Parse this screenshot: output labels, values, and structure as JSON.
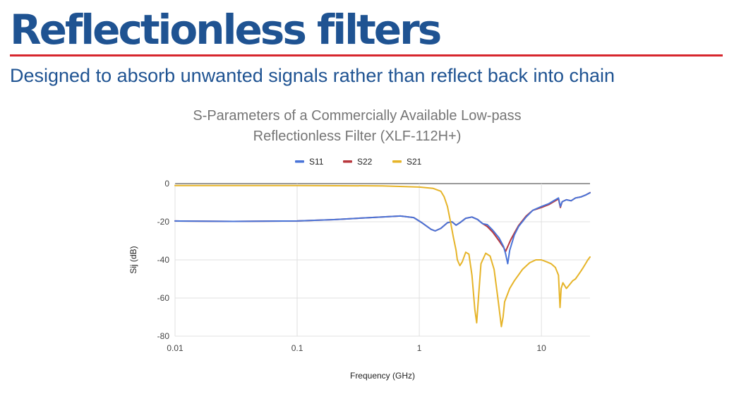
{
  "slide": {
    "title": "Reflectionless filters",
    "subtitle": "Designed to absorb unwanted signals rather than reflect back into chain"
  },
  "colors": {
    "brand_blue": "#1f5392",
    "accent_red": "#d7262d",
    "s11": "#4a74d8",
    "s22": "#b8373d",
    "s21": "#e6b429"
  },
  "chart_data": {
    "type": "line",
    "title_lines": [
      "S-Parameters of a Commercially Available Low-pass",
      "Reflectionless Filter (XLF-112H+)"
    ],
    "xlabel": "Frequency (GHz)",
    "ylabel": "Sij (dB)",
    "x_scale": "log",
    "xlim": [
      0.01,
      25
    ],
    "ylim": [
      -80,
      0
    ],
    "x_ticks": [
      {
        "value": 0.01,
        "label": "0.01"
      },
      {
        "value": 0.1,
        "label": "0.1"
      },
      {
        "value": 1,
        "label": "1"
      },
      {
        "value": 10,
        "label": "10"
      }
    ],
    "y_ticks": [
      {
        "value": 0,
        "label": "0"
      },
      {
        "value": -20,
        "label": "-20"
      },
      {
        "value": -40,
        "label": "-40"
      },
      {
        "value": -60,
        "label": "-60"
      },
      {
        "value": -80,
        "label": "-80"
      }
    ],
    "grid": true,
    "legend_position": "top",
    "series": [
      {
        "name": "S11",
        "color": "#4a74d8",
        "points": [
          [
            0.01,
            -19.6
          ],
          [
            0.03,
            -19.8
          ],
          [
            0.1,
            -19.6
          ],
          [
            0.2,
            -18.9
          ],
          [
            0.4,
            -17.8
          ],
          [
            0.7,
            -17.0
          ],
          [
            0.9,
            -17.8
          ],
          [
            1.05,
            -20.5
          ],
          [
            1.25,
            -24.0
          ],
          [
            1.35,
            -24.8
          ],
          [
            1.5,
            -23.5
          ],
          [
            1.7,
            -20.5
          ],
          [
            1.85,
            -20.0
          ],
          [
            2.0,
            -21.8
          ],
          [
            2.15,
            -20.5
          ],
          [
            2.4,
            -18.2
          ],
          [
            2.7,
            -17.5
          ],
          [
            3.0,
            -18.8
          ],
          [
            3.3,
            -21.0
          ],
          [
            3.6,
            -21.5
          ],
          [
            4.0,
            -24.5
          ],
          [
            4.5,
            -28.5
          ],
          [
            4.9,
            -33.0
          ],
          [
            5.1,
            -37.0
          ],
          [
            5.3,
            -42.0
          ],
          [
            5.5,
            -35.0
          ],
          [
            6.0,
            -27.0
          ],
          [
            6.5,
            -22.5
          ],
          [
            7.5,
            -17.5
          ],
          [
            8.5,
            -14.0
          ],
          [
            10.0,
            -12.0
          ],
          [
            11.5,
            -10.5
          ],
          [
            13.0,
            -8.5
          ],
          [
            13.8,
            -7.5
          ],
          [
            14.3,
            -12.0
          ],
          [
            14.8,
            -9.5
          ],
          [
            16.0,
            -8.5
          ],
          [
            17.5,
            -9.0
          ],
          [
            19.0,
            -7.5
          ],
          [
            21.0,
            -7.0
          ],
          [
            23.0,
            -6.0
          ],
          [
            25.0,
            -4.8
          ]
        ]
      },
      {
        "name": "S22",
        "color": "#b8373d",
        "points": [
          [
            0.01,
            -19.6
          ],
          [
            0.03,
            -19.8
          ],
          [
            0.1,
            -19.6
          ],
          [
            0.2,
            -18.9
          ],
          [
            0.4,
            -17.8
          ],
          [
            0.7,
            -17.0
          ],
          [
            0.9,
            -17.8
          ],
          [
            1.05,
            -20.5
          ],
          [
            1.25,
            -24.0
          ],
          [
            1.35,
            -24.8
          ],
          [
            1.5,
            -23.5
          ],
          [
            1.7,
            -20.5
          ],
          [
            1.85,
            -20.0
          ],
          [
            2.0,
            -21.8
          ],
          [
            2.15,
            -20.5
          ],
          [
            2.4,
            -18.2
          ],
          [
            2.7,
            -17.5
          ],
          [
            3.0,
            -18.8
          ],
          [
            3.3,
            -21.0
          ],
          [
            3.6,
            -22.5
          ],
          [
            4.0,
            -25.5
          ],
          [
            4.5,
            -30.0
          ],
          [
            4.9,
            -33.5
          ],
          [
            5.1,
            -35.5
          ],
          [
            5.3,
            -33.0
          ],
          [
            5.6,
            -29.5
          ],
          [
            6.0,
            -26.0
          ],
          [
            6.5,
            -22.0
          ],
          [
            7.5,
            -17.0
          ],
          [
            8.5,
            -14.0
          ],
          [
            10.0,
            -12.5
          ],
          [
            11.5,
            -11.0
          ],
          [
            13.0,
            -9.0
          ],
          [
            13.8,
            -8.0
          ],
          [
            14.3,
            -12.5
          ],
          [
            14.8,
            -9.5
          ],
          [
            16.0,
            -8.5
          ],
          [
            17.5,
            -9.0
          ],
          [
            19.0,
            -7.5
          ],
          [
            21.0,
            -7.0
          ],
          [
            23.0,
            -6.0
          ],
          [
            25.0,
            -4.7
          ]
        ]
      },
      {
        "name": "S21",
        "color": "#e6b429",
        "points": [
          [
            0.01,
            -1.0
          ],
          [
            0.1,
            -1.0
          ],
          [
            0.5,
            -1.2
          ],
          [
            1.0,
            -1.8
          ],
          [
            1.3,
            -2.5
          ],
          [
            1.5,
            -4.0
          ],
          [
            1.6,
            -7.0
          ],
          [
            1.7,
            -12.0
          ],
          [
            1.8,
            -20.0
          ],
          [
            1.9,
            -28.0
          ],
          [
            2.0,
            -35.0
          ],
          [
            2.05,
            -40.0
          ],
          [
            2.15,
            -43.0
          ],
          [
            2.25,
            -41.0
          ],
          [
            2.4,
            -36.0
          ],
          [
            2.55,
            -37.0
          ],
          [
            2.7,
            -48.0
          ],
          [
            2.85,
            -66.0
          ],
          [
            2.95,
            -73.0
          ],
          [
            3.05,
            -60.0
          ],
          [
            3.2,
            -42.0
          ],
          [
            3.5,
            -36.5
          ],
          [
            3.8,
            -38.0
          ],
          [
            4.1,
            -45.0
          ],
          [
            4.4,
            -60.0
          ],
          [
            4.7,
            -75.0
          ],
          [
            4.85,
            -70.0
          ],
          [
            5.0,
            -62.0
          ],
          [
            5.5,
            -55.0
          ],
          [
            6.0,
            -51.0
          ],
          [
            7.0,
            -45.0
          ],
          [
            8.0,
            -41.5
          ],
          [
            9.0,
            -40.0
          ],
          [
            10.0,
            -40.0
          ],
          [
            11.0,
            -41.0
          ],
          [
            12.0,
            -42.0
          ],
          [
            13.0,
            -44.0
          ],
          [
            13.8,
            -48.0
          ],
          [
            14.2,
            -65.0
          ],
          [
            14.5,
            -55.0
          ],
          [
            15.0,
            -52.0
          ],
          [
            16.0,
            -55.0
          ],
          [
            17.0,
            -53.0
          ],
          [
            18.0,
            -51.0
          ],
          [
            19.0,
            -50.0
          ],
          [
            20.0,
            -48.0
          ],
          [
            21.0,
            -46.0
          ],
          [
            22.0,
            -44.0
          ],
          [
            23.0,
            -42.0
          ],
          [
            24.0,
            -40.0
          ],
          [
            25.0,
            -38.5
          ]
        ]
      }
    ]
  }
}
